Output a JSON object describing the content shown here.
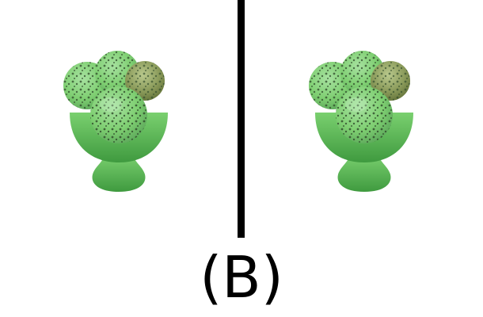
{
  "caption": "(B)",
  "panels": [
    {
      "object": "ice-cream-sundae-icon"
    },
    {
      "object": "ice-cream-sundae-icon"
    }
  ],
  "colors": {
    "background": "#ffffff",
    "divider": "#000000",
    "caption": "#000000",
    "cup": "#5fbf5a",
    "cup_dark": "#3f9a3f",
    "scoop": "#7fcf72",
    "scoop_shadow": "#5ca85a",
    "sprinkle": "#2f4a2a",
    "scoop_brown_tint": "#8a9a5a"
  }
}
